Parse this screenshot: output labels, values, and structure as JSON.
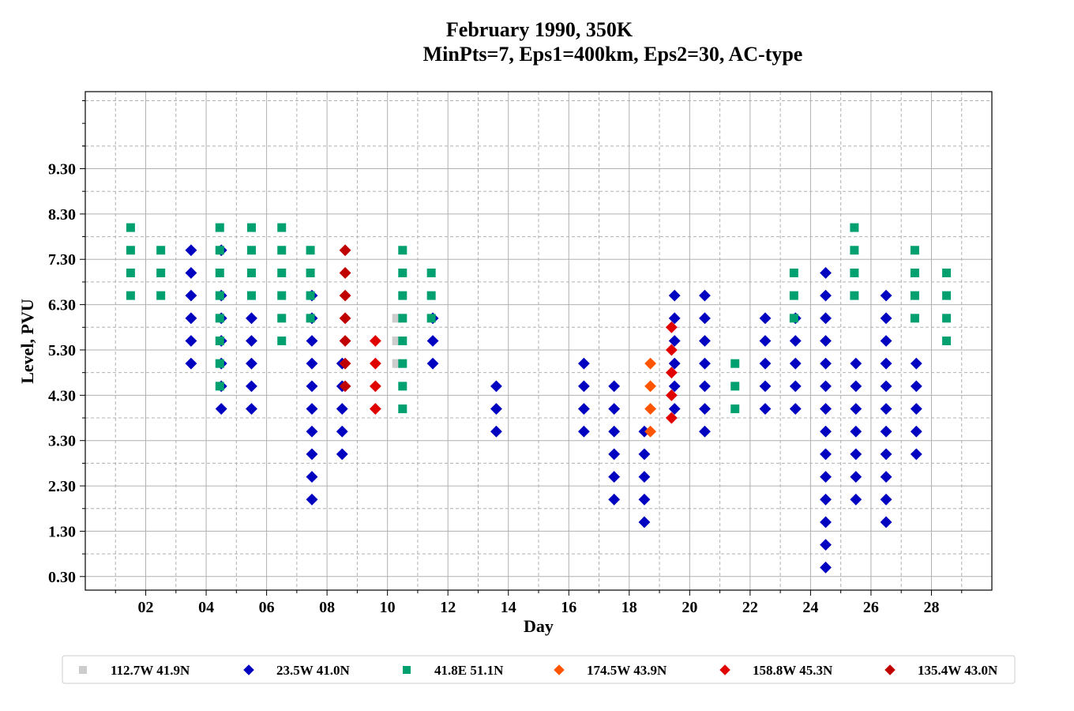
{
  "chart_data": {
    "type": "scatter",
    "title": [
      "February 1990, 350K",
      "MinPts=7, Eps1=400km, Eps2=30, AC-type"
    ],
    "xlabel": "Day",
    "ylabel": "Level, PVU",
    "xlim": [
      0,
      30
    ],
    "ylim": [
      0,
      11
    ],
    "x_ticks": [
      "02",
      "04",
      "06",
      "08",
      "10",
      "12",
      "14",
      "16",
      "18",
      "20",
      "22",
      "24",
      "26",
      "28"
    ],
    "x_tick_values": [
      2,
      4,
      6,
      8,
      10,
      12,
      14,
      16,
      18,
      20,
      22,
      24,
      26,
      28
    ],
    "y_ticks": [
      "0.30",
      "1.30",
      "2.30",
      "3.30",
      "4.30",
      "5.30",
      "6.30",
      "7.30",
      "8.30",
      "9.30"
    ],
    "y_tick_values": [
      0.3,
      1.3,
      2.3,
      3.3,
      4.3,
      5.3,
      6.3,
      7.3,
      8.3,
      9.3
    ],
    "grid": true,
    "legend_position": "bottom",
    "series": [
      {
        "name": "112.7W 41.9N",
        "color": "#cccccc",
        "marker": "square",
        "points": [
          [
            10.3,
            5.5
          ],
          [
            10.3,
            5
          ],
          [
            10.3,
            6
          ]
        ]
      },
      {
        "name": "23.5W 41.0N",
        "color": "#0000c0",
        "marker": "diamond",
        "points": [
          [
            3.5,
            7.5
          ],
          [
            3.5,
            7
          ],
          [
            3.5,
            6.5
          ],
          [
            3.5,
            6
          ],
          [
            3.5,
            5.5
          ],
          [
            3.5,
            5
          ],
          [
            4.5,
            7.5
          ],
          [
            4.5,
            6.5
          ],
          [
            4.5,
            6
          ],
          [
            4.5,
            5.5
          ],
          [
            4.5,
            5
          ],
          [
            4.5,
            4.5
          ],
          [
            4.5,
            4
          ],
          [
            5.5,
            6
          ],
          [
            5.5,
            5.5
          ],
          [
            5.5,
            5
          ],
          [
            5.5,
            4.5
          ],
          [
            5.5,
            4
          ],
          [
            7.5,
            6.5
          ],
          [
            7.5,
            6
          ],
          [
            7.5,
            5.5
          ],
          [
            7.5,
            5
          ],
          [
            7.5,
            4.5
          ],
          [
            7.5,
            4
          ],
          [
            7.5,
            3.5
          ],
          [
            7.5,
            3
          ],
          [
            7.5,
            2.5
          ],
          [
            7.5,
            2
          ],
          [
            8.5,
            5
          ],
          [
            8.5,
            4.5
          ],
          [
            8.5,
            4
          ],
          [
            8.5,
            3.5
          ],
          [
            8.5,
            3
          ],
          [
            11.5,
            6
          ],
          [
            11.5,
            5.5
          ],
          [
            11.5,
            5
          ],
          [
            13.6,
            4.5
          ],
          [
            13.6,
            4
          ],
          [
            13.6,
            3.5
          ],
          [
            16.5,
            5
          ],
          [
            16.5,
            4.5
          ],
          [
            16.5,
            4
          ],
          [
            16.5,
            3.5
          ],
          [
            17.5,
            4.5
          ],
          [
            17.5,
            4
          ],
          [
            17.5,
            3.5
          ],
          [
            17.5,
            3
          ],
          [
            17.5,
            2.5
          ],
          [
            17.5,
            2
          ],
          [
            18.5,
            3.5
          ],
          [
            18.5,
            3
          ],
          [
            18.5,
            2.5
          ],
          [
            18.5,
            2
          ],
          [
            18.5,
            1.5
          ],
          [
            19.5,
            6.5
          ],
          [
            19.5,
            6
          ],
          [
            19.5,
            5.5
          ],
          [
            19.5,
            5
          ],
          [
            19.5,
            4.5
          ],
          [
            19.5,
            4
          ],
          [
            20.5,
            6.5
          ],
          [
            20.5,
            6
          ],
          [
            20.5,
            5.5
          ],
          [
            20.5,
            5
          ],
          [
            20.5,
            4.5
          ],
          [
            20.5,
            4
          ],
          [
            20.5,
            3.5
          ],
          [
            22.5,
            6
          ],
          [
            22.5,
            5.5
          ],
          [
            22.5,
            5
          ],
          [
            22.5,
            4.5
          ],
          [
            22.5,
            4
          ],
          [
            23.5,
            6
          ],
          [
            23.5,
            5.5
          ],
          [
            23.5,
            5
          ],
          [
            23.5,
            4.5
          ],
          [
            23.5,
            4
          ],
          [
            24.5,
            7
          ],
          [
            24.5,
            6.5
          ],
          [
            24.5,
            6
          ],
          [
            24.5,
            5.5
          ],
          [
            24.5,
            5
          ],
          [
            24.5,
            4.5
          ],
          [
            24.5,
            4
          ],
          [
            24.5,
            3.5
          ],
          [
            24.5,
            3
          ],
          [
            24.5,
            2.5
          ],
          [
            24.5,
            2
          ],
          [
            24.5,
            1.5
          ],
          [
            24.5,
            1
          ],
          [
            24.5,
            0.5
          ],
          [
            25.5,
            5
          ],
          [
            25.5,
            4.5
          ],
          [
            25.5,
            4
          ],
          [
            25.5,
            3.5
          ],
          [
            25.5,
            3
          ],
          [
            25.5,
            2.5
          ],
          [
            25.5,
            2
          ],
          [
            26.5,
            6.5
          ],
          [
            26.5,
            6
          ],
          [
            26.5,
            5.5
          ],
          [
            26.5,
            5
          ],
          [
            26.5,
            4.5
          ],
          [
            26.5,
            4
          ],
          [
            26.5,
            3.5
          ],
          [
            26.5,
            3
          ],
          [
            26.5,
            2.5
          ],
          [
            26.5,
            2
          ],
          [
            26.5,
            1.5
          ],
          [
            27.5,
            5
          ],
          [
            27.5,
            4.5
          ],
          [
            27.5,
            4
          ],
          [
            27.5,
            3.5
          ],
          [
            27.5,
            3
          ]
        ]
      },
      {
        "name": "41.8E 51.1N",
        "color": "#00a070",
        "marker": "square",
        "points": [
          [
            1.5,
            8
          ],
          [
            1.5,
            7.5
          ],
          [
            1.5,
            7
          ],
          [
            1.5,
            6.5
          ],
          [
            2.5,
            7.5
          ],
          [
            2.5,
            7
          ],
          [
            2.5,
            6.5
          ],
          [
            4.45,
            8
          ],
          [
            4.45,
            7.5
          ],
          [
            4.45,
            7
          ],
          [
            4.45,
            6.5
          ],
          [
            4.45,
            6
          ],
          [
            4.45,
            5.5
          ],
          [
            4.45,
            5
          ],
          [
            4.45,
            4.5
          ],
          [
            5.5,
            8
          ],
          [
            5.5,
            7.5
          ],
          [
            5.5,
            7
          ],
          [
            5.5,
            6.5
          ],
          [
            6.5,
            8
          ],
          [
            6.5,
            7.5
          ],
          [
            6.5,
            7
          ],
          [
            6.5,
            6.5
          ],
          [
            6.5,
            6
          ],
          [
            6.5,
            5.5
          ],
          [
            7.45,
            7.5
          ],
          [
            7.45,
            7
          ],
          [
            7.45,
            6.5
          ],
          [
            7.45,
            6
          ],
          [
            10.5,
            7.5
          ],
          [
            10.5,
            7
          ],
          [
            10.5,
            6.5
          ],
          [
            10.5,
            6
          ],
          [
            10.5,
            5.5
          ],
          [
            10.5,
            5
          ],
          [
            10.5,
            4.5
          ],
          [
            10.5,
            4
          ],
          [
            11.45,
            7
          ],
          [
            11.45,
            6.5
          ],
          [
            11.45,
            6
          ],
          [
            21.5,
            5
          ],
          [
            21.5,
            4.5
          ],
          [
            21.5,
            4
          ],
          [
            23.45,
            7
          ],
          [
            23.45,
            6.5
          ],
          [
            23.45,
            6
          ],
          [
            25.45,
            8
          ],
          [
            25.45,
            7.5
          ],
          [
            25.45,
            7
          ],
          [
            25.45,
            6.5
          ],
          [
            27.45,
            7.5
          ],
          [
            27.45,
            7
          ],
          [
            27.45,
            6.5
          ],
          [
            27.45,
            6
          ],
          [
            28.5,
            7
          ],
          [
            28.5,
            6.5
          ],
          [
            28.5,
            6
          ],
          [
            28.5,
            5.5
          ]
        ]
      },
      {
        "name": "174.5W 43.9N",
        "color": "#ff5500",
        "marker": "diamond",
        "points": [
          [
            18.7,
            5
          ],
          [
            18.7,
            4.5
          ],
          [
            18.7,
            4
          ],
          [
            18.7,
            3.5
          ]
        ]
      },
      {
        "name": "158.8W 45.3N",
        "color": "#e00000",
        "marker": "diamond",
        "points": [
          [
            9.6,
            5.5
          ],
          [
            9.6,
            5
          ],
          [
            9.6,
            4.5
          ],
          [
            9.6,
            4
          ],
          [
            19.4,
            5.8
          ],
          [
            19.4,
            5.3
          ],
          [
            19.4,
            4.8
          ],
          [
            19.4,
            4.3
          ],
          [
            19.4,
            3.8
          ]
        ]
      },
      {
        "name": "135.4W 43.0N",
        "color": "#c00000",
        "marker": "diamond",
        "points": [
          [
            8.6,
            7.5
          ],
          [
            8.6,
            7
          ],
          [
            8.6,
            6.5
          ],
          [
            8.6,
            6
          ],
          [
            8.6,
            5.5
          ],
          [
            8.6,
            5
          ],
          [
            8.6,
            4.5
          ]
        ]
      }
    ]
  }
}
